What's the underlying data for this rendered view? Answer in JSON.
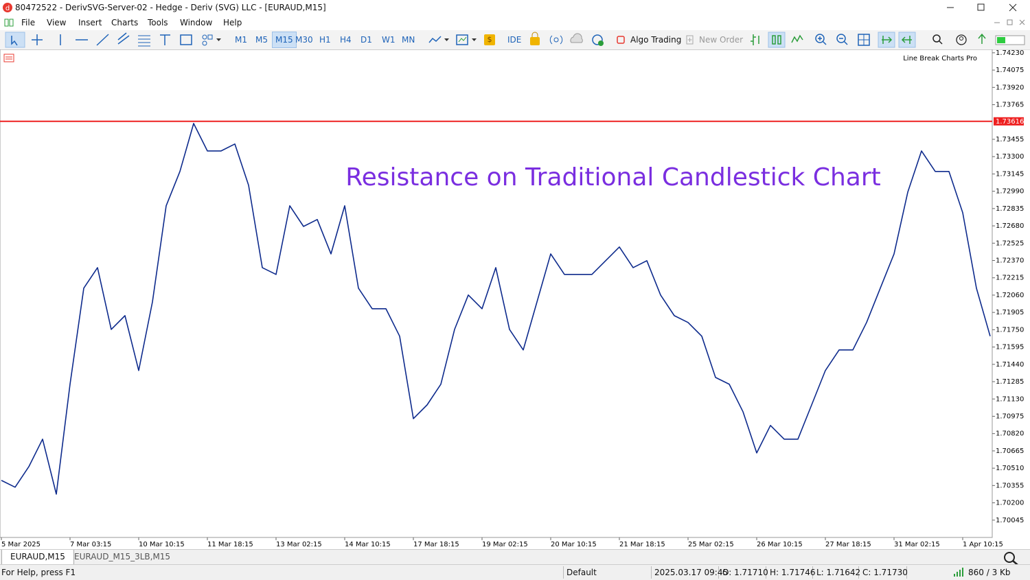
{
  "window": {
    "title": "80472522 - DerivSVG-Server-02 - Hedge - Deriv (SVG) LLC - [EURAUD,M15]"
  },
  "menu": [
    "File",
    "View",
    "Insert",
    "Charts",
    "Tools",
    "Window",
    "Help"
  ],
  "toolbar": {
    "timeframes": [
      "M1",
      "M5",
      "M15",
      "M30",
      "H1",
      "H4",
      "D1",
      "W1",
      "MN"
    ],
    "active_timeframe": "M15",
    "ide": "IDE",
    "algo_trading": "Algo Trading",
    "new_order": "New Order"
  },
  "chart_data": {
    "type": "line",
    "annotation": "Resistance on Traditional Candlestick Chart",
    "indicator_label": "Line Break Charts Pro",
    "color": "#0d2a8c",
    "resistance": 1.73616,
    "resistance_color": "#ee2020",
    "categories": [
      "5 Mar 2025",
      null,
      null,
      null,
      null,
      "7 Mar 03:15",
      null,
      null,
      null,
      null,
      "10 Mar 10:15",
      null,
      null,
      null,
      null,
      "11 Mar 18:15",
      null,
      null,
      null,
      null,
      "13 Mar 02:15",
      null,
      null,
      null,
      null,
      "14 Mar 10:15",
      null,
      null,
      null,
      null,
      "17 Mar 18:15",
      null,
      null,
      null,
      null,
      "19 Mar 02:15",
      null,
      null,
      null,
      null,
      "20 Mar 10:15",
      null,
      null,
      null,
      null,
      "21 Mar 18:15",
      null,
      null,
      null,
      null,
      "25 Mar 02:15",
      null,
      null,
      null,
      null,
      "26 Mar 10:15",
      null,
      null,
      null,
      null,
      "27 Mar 18:15",
      null,
      null,
      null,
      null,
      "31 Mar 02:15",
      null,
      null,
      null,
      null,
      "1 Apr 10:15",
      null,
      null
    ],
    "values": [
      1.70401,
      1.7034,
      1.70524,
      1.7077,
      1.70278,
      1.71262,
      1.72122,
      1.72306,
      1.71753,
      1.71876,
      1.71385,
      1.71999,
      1.7286,
      1.73167,
      1.73597,
      1.73351,
      1.73351,
      1.73413,
      1.73044,
      1.72306,
      1.72245,
      1.7286,
      1.72675,
      1.72737,
      1.72429,
      1.7286,
      1.72122,
      1.71938,
      1.71938,
      1.71692,
      1.70954,
      1.71077,
      1.71262,
      1.71753,
      1.72061,
      1.71938,
      1.72306,
      1.71753,
      1.71569,
      1.71999,
      1.72429,
      1.72245,
      1.72245,
      1.72245,
      1.72368,
      1.72491,
      1.72306,
      1.72368,
      1.72061,
      1.71876,
      1.71815,
      1.71692,
      1.71323,
      1.71262,
      1.71016,
      1.70647,
      1.70893,
      1.7077,
      1.7077,
      1.71077,
      1.71385,
      1.71569,
      1.71569,
      1.71815,
      1.72122,
      1.72429,
      1.72982,
      1.73351,
      1.73167,
      1.73167,
      1.72798,
      1.72122,
      1.71692
    ],
    "ylim": [
      1.6989,
      1.7426
    ],
    "yticks": [
      {
        "value": 1.7423,
        "label": "1.74230"
      },
      1.74075,
      {
        "value": 1.7392,
        "label": "1.73920"
      },
      1.73765,
      1.73455,
      {
        "value": 1.733,
        "label": "1.73300"
      },
      1.73145,
      {
        "value": 1.7299,
        "label": "1.72990"
      },
      1.72835,
      {
        "value": 1.7268,
        "label": "1.72680"
      },
      1.72525,
      {
        "value": 1.7237,
        "label": "1.72370"
      },
      1.72215,
      {
        "value": 1.7206,
        "label": "1.72060"
      },
      1.71905,
      {
        "value": 1.7175,
        "label": "1.71750"
      },
      1.71595,
      {
        "value": 1.7144,
        "label": "1.71440"
      },
      1.71285,
      {
        "value": 1.7113,
        "label": "1.71130"
      },
      1.70975,
      {
        "value": 1.7082,
        "label": "1.70820"
      },
      1.70665,
      {
        "value": 1.7051,
        "label": "1.70510"
      },
      1.70355,
      {
        "value": 1.702,
        "label": "1.70200"
      },
      1.70045
    ]
  },
  "tabs": [
    "EURAUD,M15",
    "EURAUD_M15_3LB,M15"
  ],
  "status": [
    "For Help, press F1",
    "Default",
    "2025.03.17 09:45",
    "O: 1.71710",
    "H: 1.71746",
    "L: 1.71642",
    "C: 1.71730",
    "860 / 3 Kb"
  ]
}
